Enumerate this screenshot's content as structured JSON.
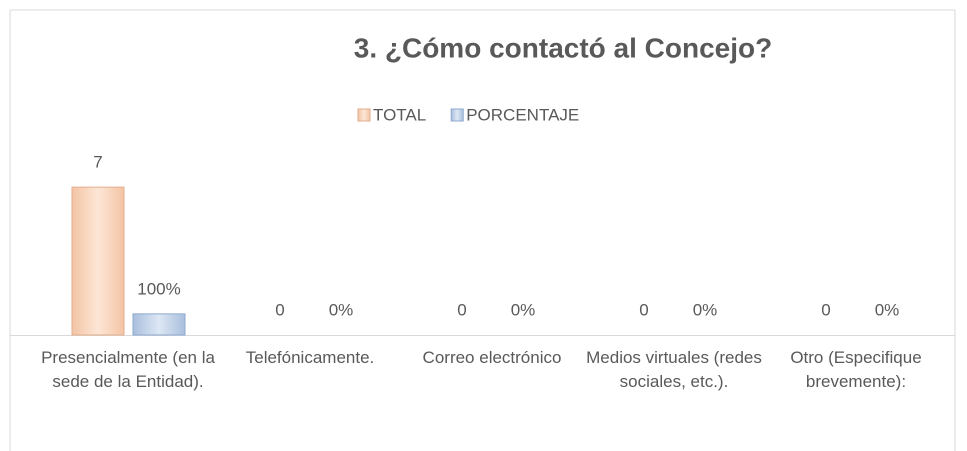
{
  "chart_data": {
    "type": "bar",
    "title": "3. ¿Cómo contactó al Concejo?",
    "categories": [
      "Presencialmente (en la sede de la Entidad).",
      "Telefónicamente.",
      "Correo electrónico",
      "Medios virtuales (redes sociales, etc.).",
      "Otro (Especifique brevemente):"
    ],
    "series": [
      {
        "name": "TOTAL",
        "color": "#f8d6bf",
        "values": [
          7,
          0,
          0,
          0,
          0
        ]
      },
      {
        "name": "PORCENTAJE",
        "color": "#c6d5ea",
        "values": [
          100,
          0,
          0,
          0,
          0
        ],
        "value_labels": [
          "100%",
          "0%",
          "0%",
          "0%",
          "0%"
        ],
        "axis": "y2"
      }
    ],
    "ylim": [
      0,
      8
    ],
    "y2lim": [
      0,
      800
    ],
    "legend": "top"
  }
}
